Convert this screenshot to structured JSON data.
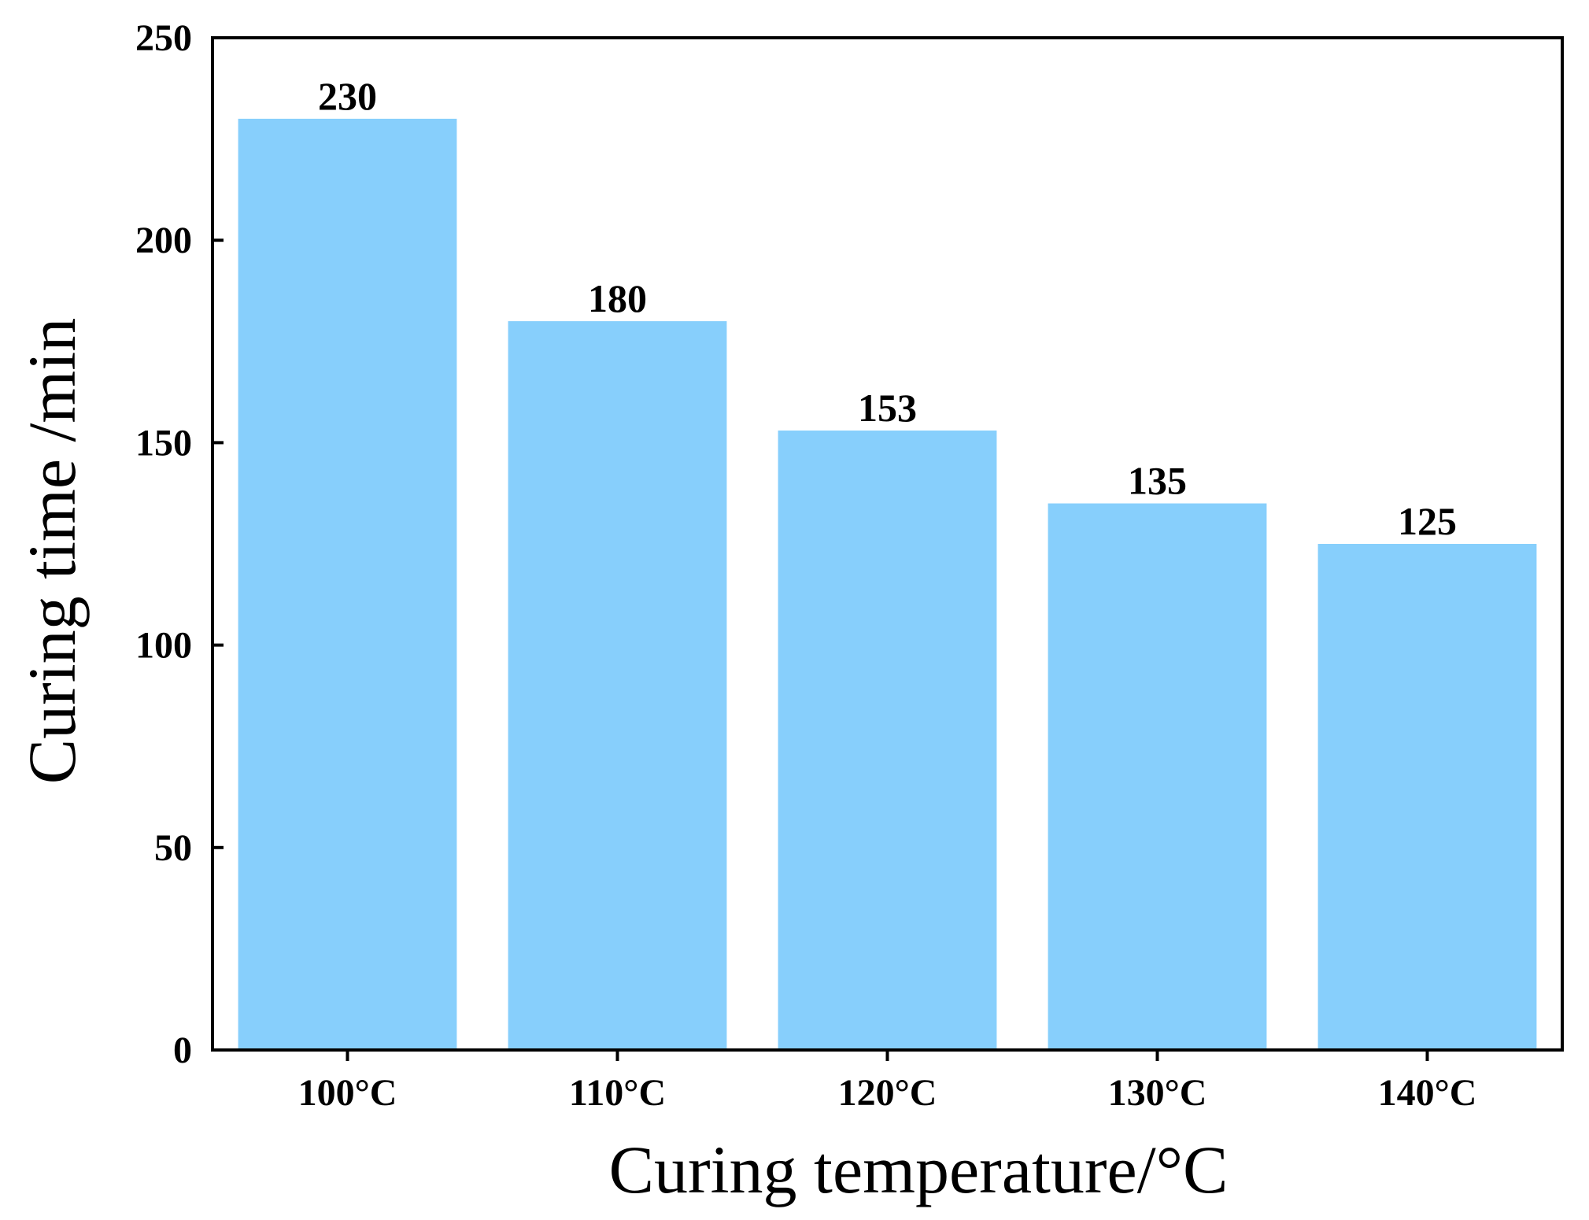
{
  "chart_data": {
    "type": "bar",
    "title": "",
    "categories": [
      "100°C",
      "110°C",
      "120°C",
      "130°C",
      "140°C"
    ],
    "values": [
      230,
      180,
      153,
      135,
      125
    ],
    "value_labels": [
      "230",
      "180",
      "153",
      "135",
      "125"
    ],
    "xlabel": "Curing temperature/°C",
    "ylabel": "Curing time /min",
    "ylim": [
      0,
      250
    ],
    "yticks": [
      0,
      50,
      100,
      150,
      200,
      250
    ],
    "ytick_labels": [
      "0",
      "50",
      "100",
      "150",
      "200",
      "250"
    ],
    "grid": false,
    "legend": "none",
    "bar_color": "#87cffc",
    "axis_color": "#000000"
  }
}
